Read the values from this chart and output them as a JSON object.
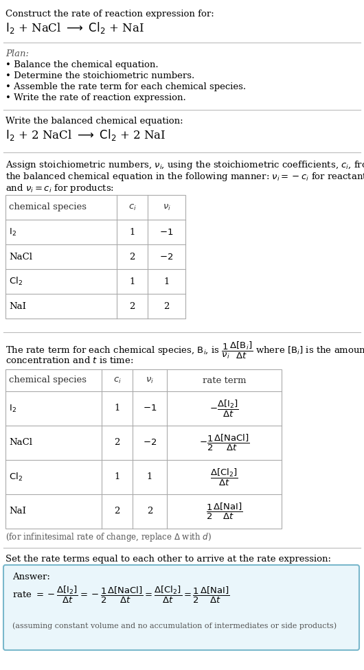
{
  "bg_color": "#ffffff",
  "text_color": "#000000",
  "section1_title": "Construct the rate of reaction expression for:",
  "section2_title": "Plan:",
  "section2_bullets": [
    "• Balance the chemical equation.",
    "• Determine the stoichiometric numbers.",
    "• Assemble the rate term for each chemical species.",
    "• Write the rate of reaction expression."
  ],
  "section3_title": "Write the balanced chemical equation:",
  "section5_note": "(for infinitesimal rate of change, replace Δ with d)",
  "section6_title": "Set the rate terms equal to each other to arrive at the rate expression:",
  "answer_box_facecolor": "#eaf6fb",
  "answer_border_color": "#7ab8cc",
  "answer_label": "Answer:",
  "answer_note": "(assuming constant volume and no accumulation of intermediates or side products)",
  "hline_color": "#bbbbbb",
  "table_border_color": "#aaaaaa",
  "gray_text": "#555555"
}
